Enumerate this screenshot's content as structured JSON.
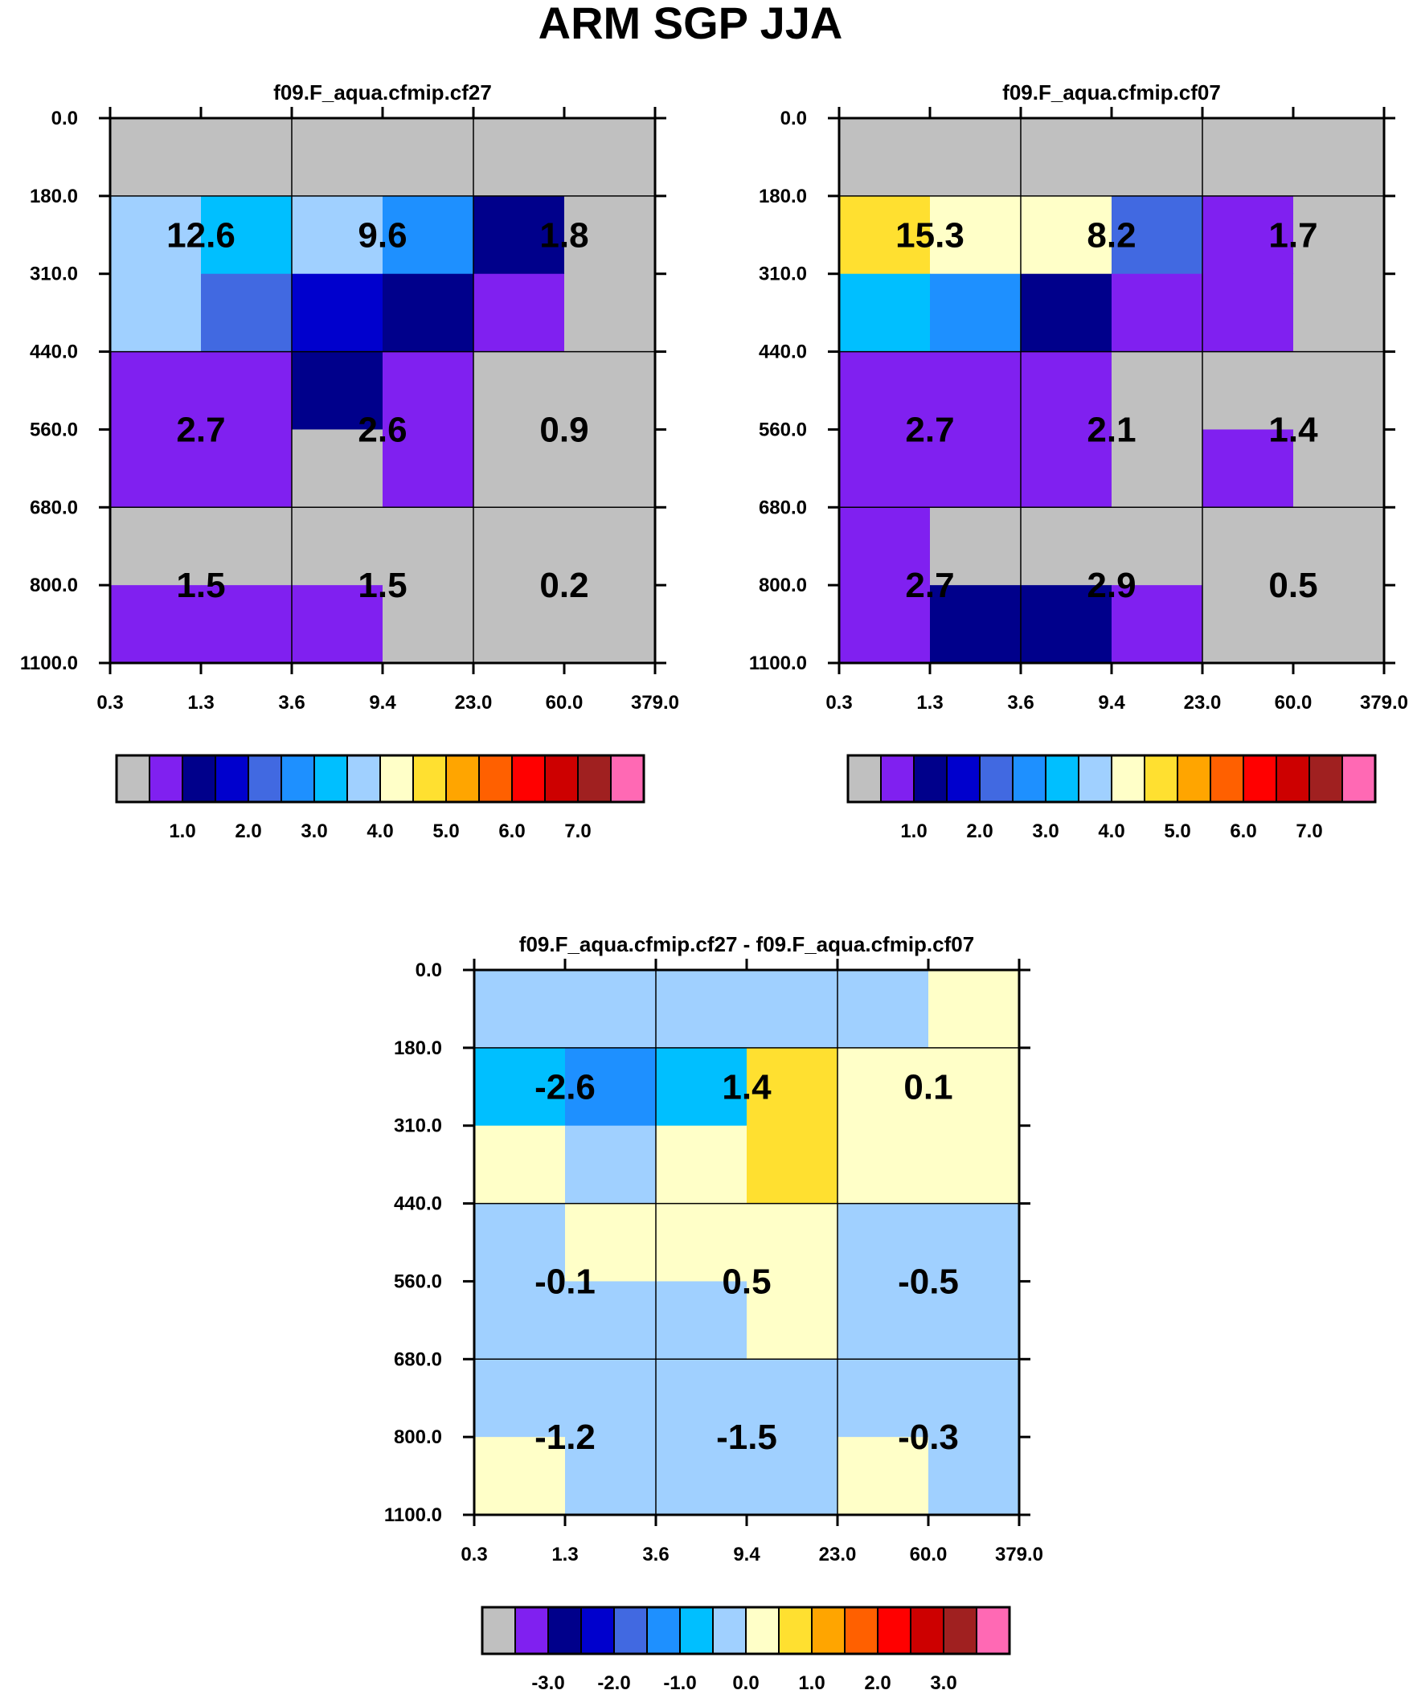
{
  "title": "ARM SGP JJA",
  "palette": [
    "#c0c0c0",
    "#8020f0",
    "#00008b",
    "#0000cd",
    "#4169e1",
    "#1e90ff",
    "#00bfff",
    "#a0d0ff",
    "#ffffc8",
    "#ffe030",
    "#ffa500",
    "#ff6000",
    "#ff0000",
    "#cd0000",
    "#a02020",
    "#ff69b4"
  ],
  "chart_data": [
    {
      "type": "heatmap",
      "title": "f09.F_aqua.cfmip.cf27",
      "x_ticks": [
        "0.3",
        "1.3",
        "3.6",
        "9.4",
        "23.0",
        "60.0",
        "379.0"
      ],
      "y_ticks": [
        "0.0",
        "180.0",
        "310.0",
        "440.0",
        "560.0",
        "680.0",
        "800.0",
        "1100.0"
      ],
      "cell_colors": [
        [
          0,
          0,
          0,
          0,
          0,
          0
        ],
        [
          7,
          6,
          7,
          5,
          2,
          0
        ],
        [
          7,
          4,
          3,
          2,
          1,
          0
        ],
        [
          1,
          1,
          2,
          1,
          0,
          0
        ],
        [
          1,
          1,
          0,
          1,
          0,
          0
        ],
        [
          0,
          0,
          0,
          0,
          0,
          0
        ],
        [
          1,
          1,
          1,
          0,
          0,
          0
        ]
      ],
      "totals": [
        {
          "col": 0,
          "row": 0,
          "value": "12.6"
        },
        {
          "col": 1,
          "row": 0,
          "value": "9.6"
        },
        {
          "col": 2,
          "row": 0,
          "value": "1.8"
        },
        {
          "col": 0,
          "row": 1,
          "value": "2.7"
        },
        {
          "col": 1,
          "row": 1,
          "value": "2.6"
        },
        {
          "col": 2,
          "row": 1,
          "value": "0.9"
        },
        {
          "col": 0,
          "row": 2,
          "value": "1.5"
        },
        {
          "col": 1,
          "row": 2,
          "value": "1.5"
        },
        {
          "col": 2,
          "row": 2,
          "value": "0.2"
        }
      ],
      "colorbar": {
        "n": 16,
        "labels": [
          "1.0",
          "2.0",
          "3.0",
          "4.0",
          "5.0",
          "6.0",
          "7.0"
        ]
      }
    },
    {
      "type": "heatmap",
      "title": "f09.F_aqua.cfmip.cf07",
      "x_ticks": [
        "0.3",
        "1.3",
        "3.6",
        "9.4",
        "23.0",
        "60.0",
        "379.0"
      ],
      "y_ticks": [
        "0.0",
        "180.0",
        "310.0",
        "440.0",
        "560.0",
        "680.0",
        "800.0",
        "1100.0"
      ],
      "cell_colors": [
        [
          0,
          0,
          0,
          0,
          0,
          0
        ],
        [
          9,
          8,
          8,
          4,
          1,
          0
        ],
        [
          6,
          5,
          2,
          1,
          1,
          0
        ],
        [
          1,
          1,
          1,
          0,
          0,
          0
        ],
        [
          1,
          1,
          1,
          0,
          1,
          0
        ],
        [
          1,
          0,
          0,
          0,
          0,
          0
        ],
        [
          1,
          2,
          2,
          1,
          0,
          0
        ]
      ],
      "totals": [
        {
          "col": 0,
          "row": 0,
          "value": "15.3"
        },
        {
          "col": 1,
          "row": 0,
          "value": "8.2"
        },
        {
          "col": 2,
          "row": 0,
          "value": "1.7"
        },
        {
          "col": 0,
          "row": 1,
          "value": "2.7"
        },
        {
          "col": 1,
          "row": 1,
          "value": "2.1"
        },
        {
          "col": 2,
          "row": 1,
          "value": "1.4"
        },
        {
          "col": 0,
          "row": 2,
          "value": "2.7"
        },
        {
          "col": 1,
          "row": 2,
          "value": "2.9"
        },
        {
          "col": 2,
          "row": 2,
          "value": "0.5"
        }
      ],
      "colorbar": {
        "n": 16,
        "labels": [
          "1.0",
          "2.0",
          "3.0",
          "4.0",
          "5.0",
          "6.0",
          "7.0"
        ]
      }
    },
    {
      "type": "heatmap",
      "title": "f09.F_aqua.cfmip.cf27 - f09.F_aqua.cfmip.cf07",
      "x_ticks": [
        "0.3",
        "1.3",
        "3.6",
        "9.4",
        "23.0",
        "60.0",
        "379.0"
      ],
      "y_ticks": [
        "0.0",
        "180.0",
        "310.0",
        "440.0",
        "560.0",
        "680.0",
        "800.0",
        "1100.0"
      ],
      "cell_colors": [
        [
          7,
          7,
          7,
          7,
          7,
          8
        ],
        [
          6,
          5,
          6,
          9,
          8,
          8
        ],
        [
          8,
          7,
          8,
          9,
          8,
          8
        ],
        [
          7,
          8,
          8,
          8,
          7,
          7
        ],
        [
          7,
          7,
          7,
          8,
          7,
          7
        ],
        [
          7,
          7,
          7,
          7,
          7,
          7
        ],
        [
          8,
          7,
          7,
          7,
          8,
          7
        ]
      ],
      "totals": [
        {
          "col": 0,
          "row": 0,
          "value": "-2.6"
        },
        {
          "col": 1,
          "row": 0,
          "value": "1.4"
        },
        {
          "col": 2,
          "row": 0,
          "value": "0.1"
        },
        {
          "col": 0,
          "row": 1,
          "value": "-0.1"
        },
        {
          "col": 1,
          "row": 1,
          "value": "0.5"
        },
        {
          "col": 2,
          "row": 1,
          "value": "-0.5"
        },
        {
          "col": 0,
          "row": 2,
          "value": "-1.2"
        },
        {
          "col": 1,
          "row": 2,
          "value": "-1.5"
        },
        {
          "col": 2,
          "row": 2,
          "value": "-0.3"
        }
      ],
      "colorbar": {
        "n": 16,
        "labels": [
          "-3.0",
          "-2.0",
          "-1.0",
          "0.0",
          "1.0",
          "2.0",
          "3.0"
        ]
      }
    }
  ]
}
